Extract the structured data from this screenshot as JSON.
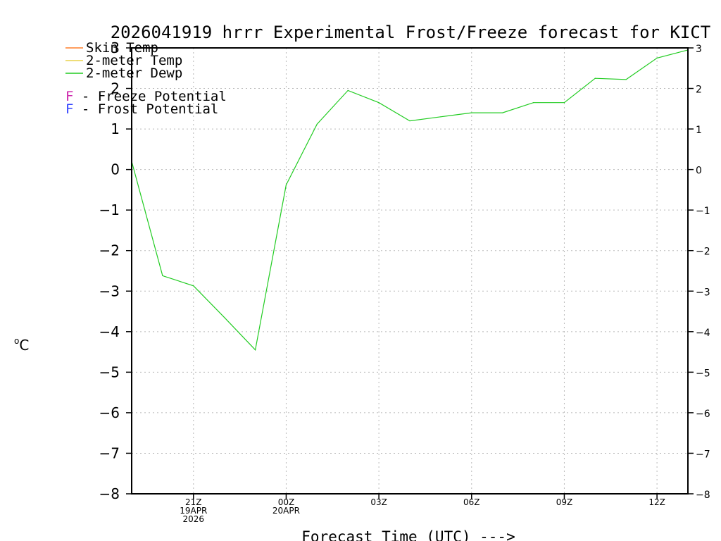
{
  "chart_data": {
    "type": "line",
    "title": "2026041919 hrrr Experimental Frost/Freeze forecast for KICT",
    "xlabel": "Forecast Time (UTC) --->",
    "ylabel_sup": "o",
    "ylabel": "C",
    "ylim": [
      -8,
      3
    ],
    "yticks": [
      3,
      2,
      1,
      0,
      -1,
      -2,
      -3,
      -4,
      -5,
      -6,
      -7,
      -8
    ],
    "yticks_left_labels": [
      "3",
      "2",
      "1",
      "0",
      "−1",
      "−2",
      "−3",
      "−4",
      "−5",
      "−6",
      "−7",
      "−8"
    ],
    "yticks_right_labels": [
      "3",
      "2",
      "1",
      "0",
      "−1",
      "−2",
      "−3",
      "−4",
      "−5",
      "−6",
      "−7",
      "−8"
    ],
    "xlim": [
      19,
      37
    ],
    "xticks": [
      {
        "x": 21,
        "lines": [
          "21Z",
          "19APR",
          "2026"
        ]
      },
      {
        "x": 24,
        "lines": [
          "00Z",
          "20APR"
        ]
      },
      {
        "x": 27,
        "lines": [
          "03Z"
        ]
      },
      {
        "x": 30,
        "lines": [
          "06Z"
        ]
      },
      {
        "x": 33,
        "lines": [
          "09Z"
        ]
      },
      {
        "x": 36,
        "lines": [
          "12Z"
        ]
      }
    ],
    "grid": true,
    "legend": [
      {
        "name": "Skin Temp",
        "color": "#ff7f2a"
      },
      {
        "name": "2-meter Temp",
        "color": "#e8d24a"
      },
      {
        "name": "2-meter Dewp",
        "color": "#22cc22"
      }
    ],
    "potentials": [
      {
        "letter": "F",
        "text": " - Freeze Potential",
        "color": "#cc22aa"
      },
      {
        "letter": "F",
        "text": " - Frost Potential",
        "color": "#3344ff"
      }
    ],
    "series": [
      {
        "name": "2-meter Dewp",
        "color": "#22cc22",
        "x": [
          19,
          20,
          21,
          22,
          23,
          24,
          25,
          26,
          27,
          28,
          29,
          30,
          31,
          32,
          33,
          34,
          35,
          36,
          37
        ],
        "values": [
          0.2,
          -2.62,
          -2.87,
          -3.65,
          -4.45,
          -0.38,
          1.12,
          1.95,
          1.65,
          1.2,
          1.3,
          1.4,
          1.4,
          1.65,
          1.65,
          2.25,
          2.22,
          2.75,
          2.95
        ]
      }
    ]
  }
}
